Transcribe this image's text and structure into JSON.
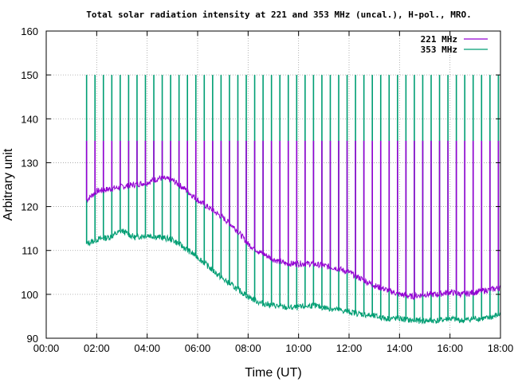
{
  "chart_data": {
    "type": "line",
    "title": "Total solar radiation intensity at 221 and 353 MHz (uncal.), H-pol., MRO.",
    "xlabel": "Time (UT)",
    "ylabel": "Arbitrary unit",
    "xlim": [
      0,
      18
    ],
    "ylim": [
      90,
      160
    ],
    "xticks": [
      0,
      2,
      4,
      6,
      8,
      10,
      12,
      14,
      16,
      18
    ],
    "xtick_labels": [
      "00:00",
      "02:00",
      "04:00",
      "06:00",
      "08:00",
      "10:00",
      "12:00",
      "14:00",
      "16:00",
      "18:00"
    ],
    "yticks": [
      90,
      100,
      110,
      120,
      130,
      140,
      150,
      160
    ],
    "ytick_labels": [
      "90",
      "100",
      "110",
      "120",
      "130",
      "140",
      "150",
      "160"
    ],
    "grid": true,
    "legend_position": "top-right",
    "calibration_spike_interval_hours": 0.333,
    "series": [
      {
        "name": "221 MHz",
        "color": "#9400d3",
        "spike_top": 135,
        "x": [
          1.6,
          2.0,
          2.5,
          3.0,
          3.5,
          4.0,
          4.5,
          5.0,
          5.5,
          6.0,
          6.5,
          7.0,
          7.5,
          8.0,
          8.5,
          9.0,
          9.5,
          10.0,
          10.5,
          11.0,
          11.5,
          12.0,
          12.5,
          13.0,
          13.5,
          14.0,
          14.5,
          15.0,
          15.5,
          16.0,
          16.5,
          17.0,
          17.5,
          18.0
        ],
        "y": [
          121.5,
          123.5,
          124.0,
          124.5,
          125.0,
          125.5,
          126.5,
          126.0,
          124.0,
          121.5,
          119.5,
          117.5,
          115.0,
          111.5,
          109.5,
          108.0,
          107.0,
          107.0,
          107.0,
          106.5,
          106.0,
          105.0,
          103.5,
          102.0,
          101.0,
          100.0,
          99.5,
          100.0,
          100.0,
          100.5,
          100.0,
          100.5,
          101.0,
          101.5
        ]
      },
      {
        "name": "353 MHz",
        "color": "#009e73",
        "spike_top": 150,
        "x": [
          1.6,
          2.0,
          2.5,
          3.0,
          3.5,
          4.0,
          4.5,
          5.0,
          5.5,
          6.0,
          6.5,
          7.0,
          7.5,
          8.0,
          8.5,
          9.0,
          9.5,
          10.0,
          10.5,
          11.0,
          11.5,
          12.0,
          12.5,
          13.0,
          13.5,
          14.0,
          14.5,
          15.0,
          15.5,
          16.0,
          16.5,
          17.0,
          17.5,
          18.0
        ],
        "y": [
          111.5,
          112.5,
          113.0,
          114.5,
          113.0,
          113.5,
          113.0,
          112.5,
          110.5,
          108.5,
          106.0,
          103.5,
          101.5,
          99.5,
          98.0,
          97.5,
          97.0,
          97.0,
          97.5,
          97.0,
          96.5,
          96.0,
          95.5,
          95.0,
          94.5,
          94.5,
          94.0,
          94.0,
          94.0,
          94.5,
          94.0,
          94.5,
          94.5,
          95.5
        ]
      }
    ]
  }
}
